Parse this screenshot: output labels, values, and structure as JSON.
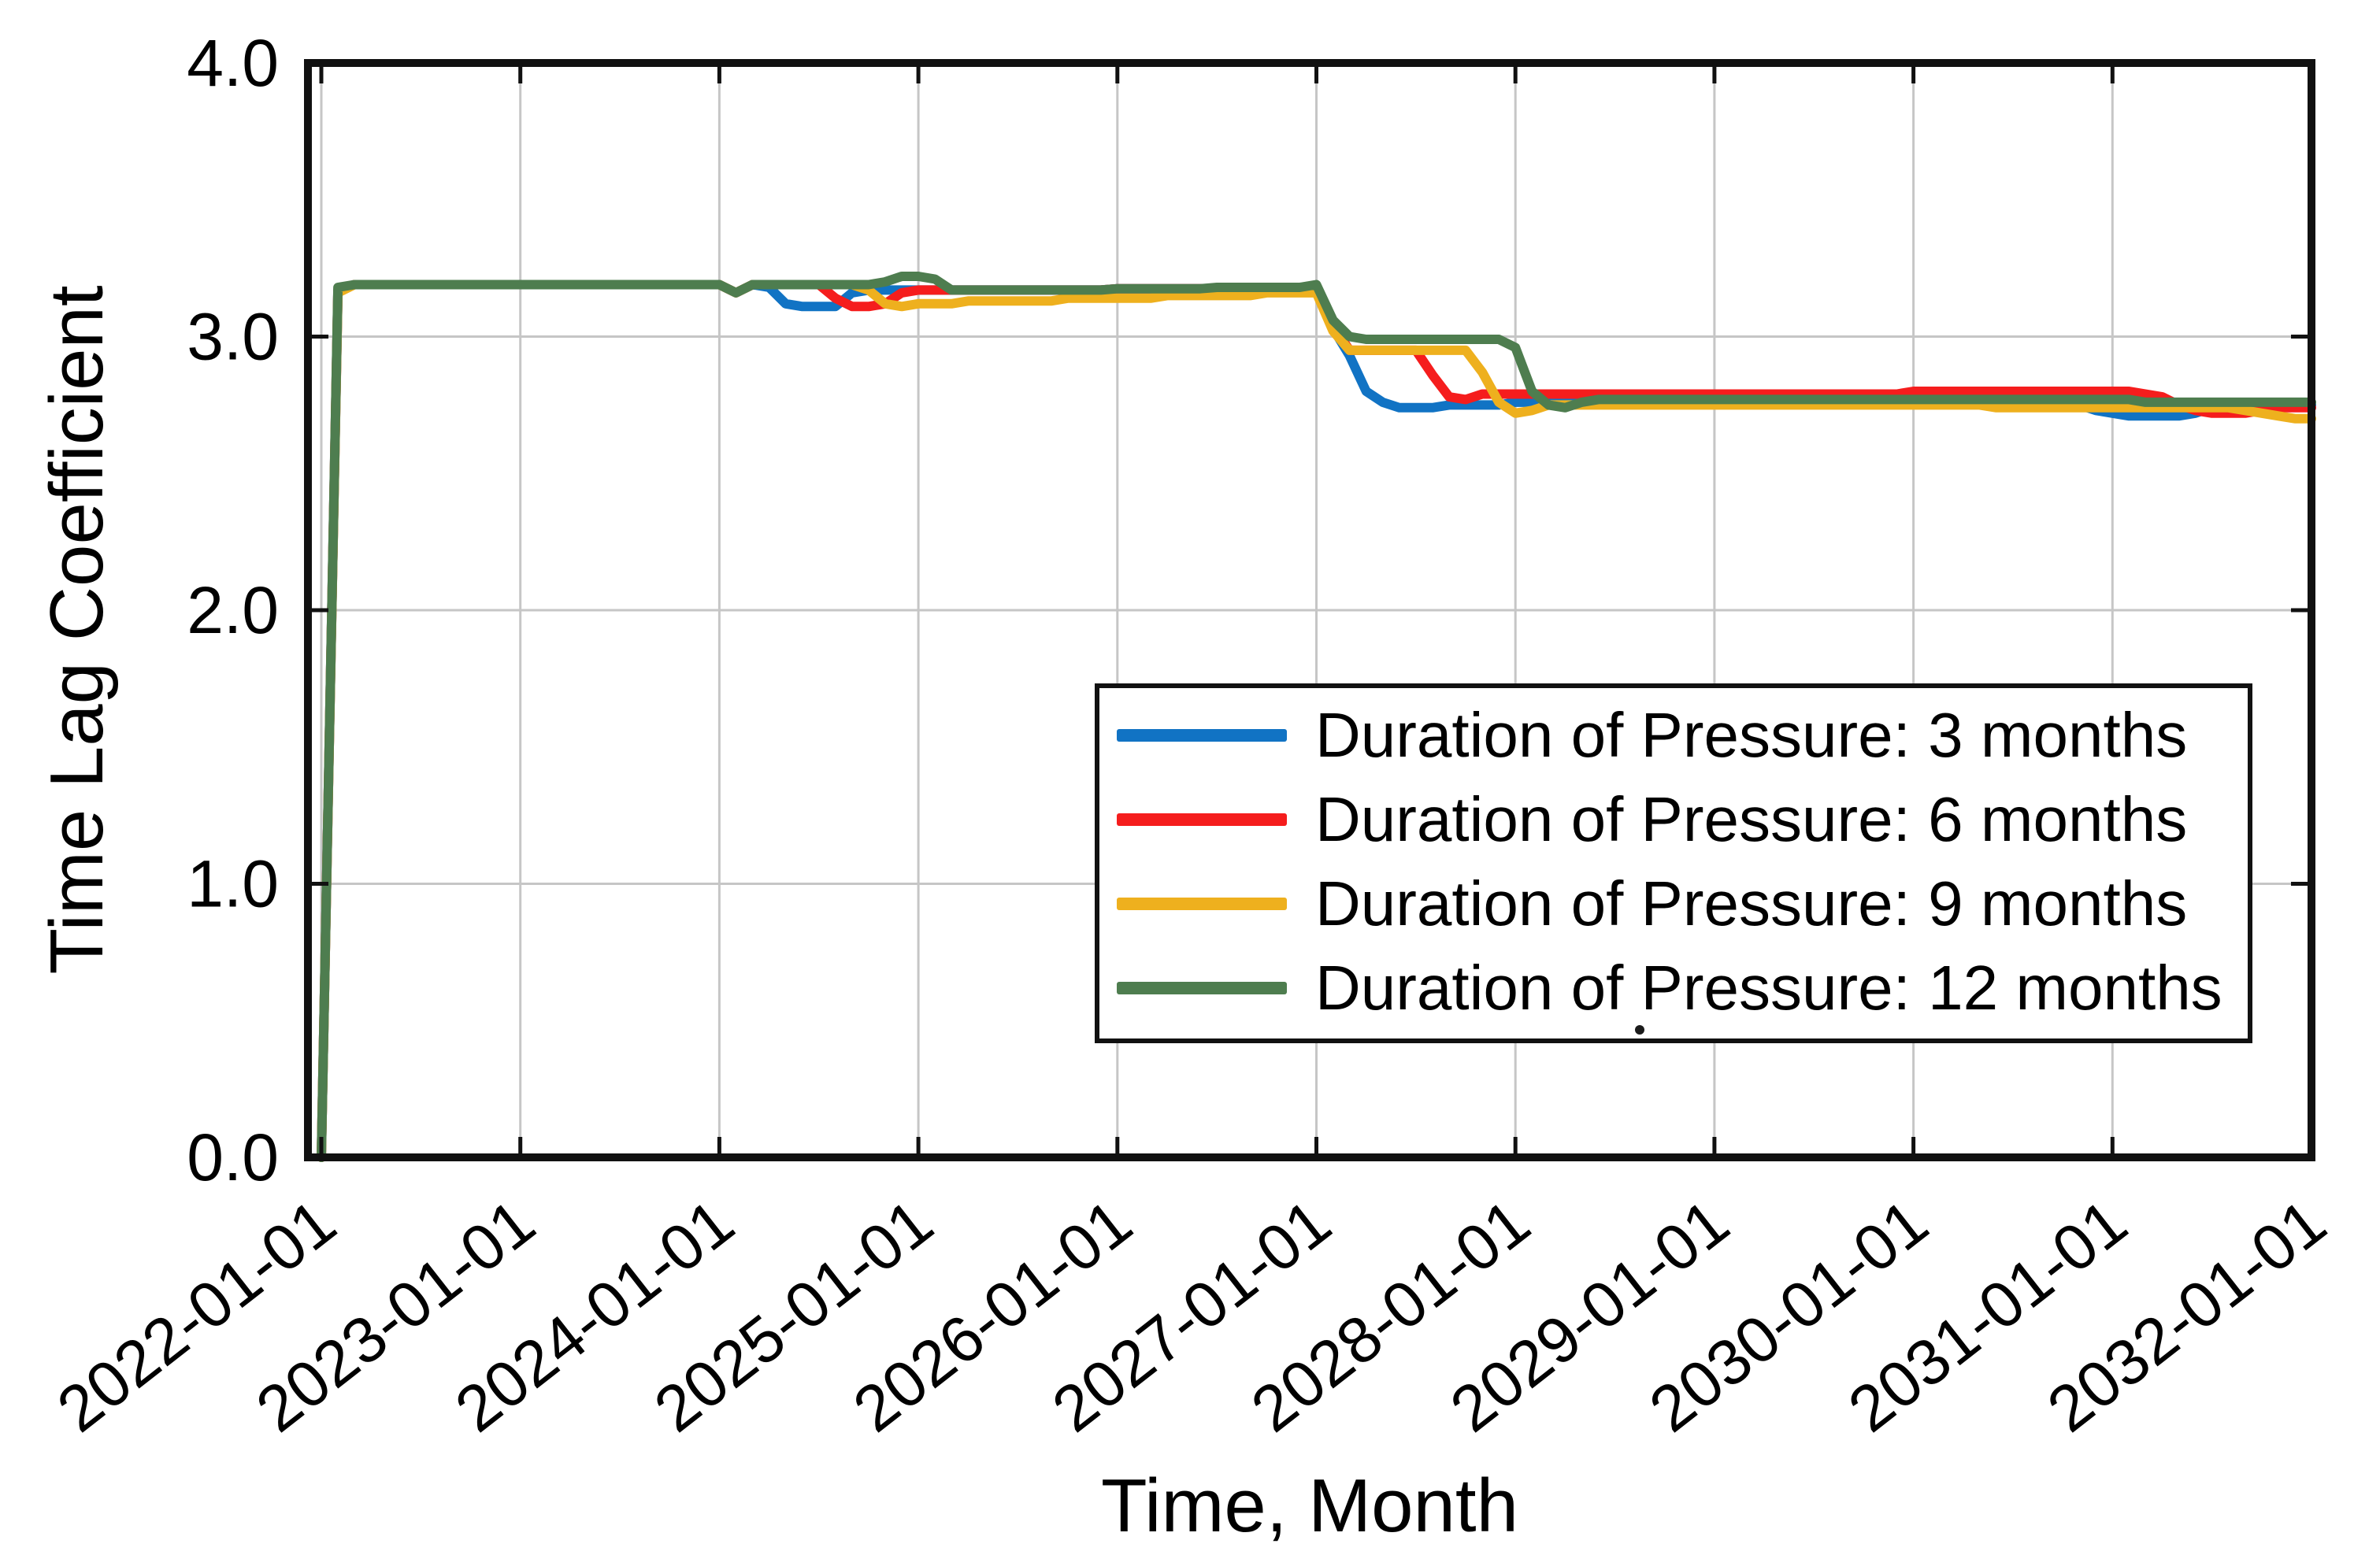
{
  "figure": {
    "background_color": "#ffffff",
    "frame_color": "#111111",
    "gridline_color": "#c6c6c6"
  },
  "chart_data": {
    "type": "line",
    "title": "",
    "xlabel": "Time, Month",
    "ylabel": "Time Lag Coefficient",
    "grid": true,
    "legend_position": "inside lower right",
    "ylim": [
      0.0,
      4.0
    ],
    "y_ticks": [
      "0.0",
      "1.0",
      "2.0",
      "3.0",
      "4.0"
    ],
    "x_range_months": [
      0,
      120
    ],
    "x_tick_interval_months": 12,
    "x_tick_labels": [
      "2022-01-01",
      "2023-01-01",
      "2024-01-01",
      "2025-01-01",
      "2026-01-01",
      "2027-01-01",
      "2028-01-01",
      "2029-01-01",
      "2030-01-01",
      "2031-01-01",
      "2032-01-01"
    ],
    "series": [
      {
        "name": "Duration of Pressure: 3 months",
        "color": "#1173c4",
        "values": [
          0.0,
          3.17,
          3.19,
          3.19,
          3.19,
          3.19,
          3.19,
          3.19,
          3.19,
          3.19,
          3.19,
          3.19,
          3.19,
          3.19,
          3.19,
          3.19,
          3.19,
          3.19,
          3.19,
          3.19,
          3.19,
          3.19,
          3.19,
          3.19,
          3.19,
          3.16,
          3.19,
          3.18,
          3.12,
          3.11,
          3.11,
          3.11,
          3.16,
          3.17,
          3.17,
          3.17,
          3.17,
          3.17,
          3.17,
          3.17,
          3.17,
          3.17,
          3.17,
          3.17,
          3.17,
          3.17,
          3.17,
          3.17,
          3.175,
          3.175,
          3.175,
          3.175,
          3.175,
          3.175,
          3.175,
          3.175,
          3.175,
          3.175,
          3.175,
          3.175,
          3.17,
          3.03,
          2.93,
          2.8,
          2.76,
          2.74,
          2.74,
          2.74,
          2.75,
          2.75,
          2.75,
          2.75,
          2.76,
          2.76,
          2.76,
          2.76,
          2.76,
          2.76,
          2.76,
          2.76,
          2.76,
          2.76,
          2.76,
          2.76,
          2.76,
          2.76,
          2.76,
          2.76,
          2.76,
          2.76,
          2.76,
          2.76,
          2.76,
          2.76,
          2.76,
          2.76,
          2.76,
          2.76,
          2.76,
          2.76,
          2.76,
          2.76,
          2.76,
          2.76,
          2.76,
          2.76,
          2.75,
          2.73,
          2.72,
          2.71,
          2.71,
          2.71,
          2.71,
          2.72,
          2.74,
          2.75,
          2.75,
          2.75,
          2.75,
          2.75,
          2.75
        ]
      },
      {
        "name": "Duration of Pressure: 6 months",
        "color": "#f51d1d",
        "values": [
          0.0,
          3.17,
          3.19,
          3.19,
          3.19,
          3.19,
          3.19,
          3.19,
          3.19,
          3.19,
          3.19,
          3.19,
          3.19,
          3.19,
          3.19,
          3.19,
          3.19,
          3.19,
          3.19,
          3.19,
          3.19,
          3.19,
          3.19,
          3.19,
          3.19,
          3.16,
          3.19,
          3.19,
          3.19,
          3.19,
          3.19,
          3.14,
          3.11,
          3.11,
          3.12,
          3.16,
          3.17,
          3.17,
          3.17,
          3.17,
          3.17,
          3.17,
          3.17,
          3.17,
          3.17,
          3.17,
          3.17,
          3.17,
          3.175,
          3.175,
          3.175,
          3.175,
          3.175,
          3.175,
          3.175,
          3.175,
          3.175,
          3.175,
          3.175,
          3.175,
          3.17,
          3.04,
          2.95,
          2.95,
          2.95,
          2.95,
          2.95,
          2.86,
          2.78,
          2.77,
          2.79,
          2.79,
          2.79,
          2.79,
          2.79,
          2.79,
          2.79,
          2.79,
          2.79,
          2.79,
          2.79,
          2.79,
          2.79,
          2.79,
          2.79,
          2.79,
          2.79,
          2.79,
          2.79,
          2.79,
          2.79,
          2.79,
          2.79,
          2.79,
          2.79,
          2.79,
          2.8,
          2.8,
          2.8,
          2.8,
          2.8,
          2.8,
          2.8,
          2.8,
          2.8,
          2.8,
          2.8,
          2.8,
          2.8,
          2.8,
          2.79,
          2.78,
          2.75,
          2.73,
          2.72,
          2.72,
          2.72,
          2.73,
          2.74,
          2.74,
          2.74
        ]
      },
      {
        "name": "Duration of Pressure: 9 months",
        "color": "#eeb01e",
        "values": [
          0.0,
          3.16,
          3.19,
          3.19,
          3.19,
          3.19,
          3.19,
          3.19,
          3.19,
          3.19,
          3.19,
          3.19,
          3.19,
          3.19,
          3.19,
          3.19,
          3.19,
          3.19,
          3.19,
          3.19,
          3.19,
          3.19,
          3.19,
          3.19,
          3.19,
          3.16,
          3.19,
          3.19,
          3.19,
          3.19,
          3.19,
          3.19,
          3.19,
          3.17,
          3.12,
          3.11,
          3.12,
          3.12,
          3.12,
          3.13,
          3.13,
          3.13,
          3.13,
          3.13,
          3.13,
          3.14,
          3.14,
          3.14,
          3.14,
          3.14,
          3.14,
          3.15,
          3.15,
          3.15,
          3.15,
          3.15,
          3.15,
          3.16,
          3.16,
          3.16,
          3.16,
          3.02,
          2.95,
          2.95,
          2.95,
          2.95,
          2.95,
          2.95,
          2.95,
          2.95,
          2.87,
          2.76,
          2.72,
          2.73,
          2.75,
          2.75,
          2.75,
          2.75,
          2.75,
          2.75,
          2.75,
          2.75,
          2.75,
          2.75,
          2.75,
          2.75,
          2.75,
          2.75,
          2.75,
          2.75,
          2.75,
          2.75,
          2.75,
          2.75,
          2.75,
          2.75,
          2.75,
          2.75,
          2.75,
          2.75,
          2.75,
          2.74,
          2.74,
          2.74,
          2.74,
          2.74,
          2.74,
          2.74,
          2.74,
          2.74,
          2.74,
          2.74,
          2.74,
          2.74,
          2.74,
          2.74,
          2.73,
          2.72,
          2.71,
          2.7,
          2.7
        ]
      },
      {
        "name": "Duration of Pressure: 12 months",
        "color": "#4e7d4f",
        "values": [
          0.0,
          3.18,
          3.19,
          3.19,
          3.19,
          3.19,
          3.19,
          3.19,
          3.19,
          3.19,
          3.19,
          3.19,
          3.19,
          3.19,
          3.19,
          3.19,
          3.19,
          3.19,
          3.19,
          3.19,
          3.19,
          3.19,
          3.19,
          3.19,
          3.19,
          3.16,
          3.19,
          3.19,
          3.19,
          3.19,
          3.19,
          3.19,
          3.19,
          3.19,
          3.2,
          3.22,
          3.22,
          3.21,
          3.17,
          3.17,
          3.17,
          3.17,
          3.17,
          3.17,
          3.17,
          3.17,
          3.17,
          3.17,
          3.175,
          3.175,
          3.175,
          3.175,
          3.175,
          3.175,
          3.18,
          3.18,
          3.18,
          3.18,
          3.18,
          3.18,
          3.19,
          3.06,
          3.0,
          2.99,
          2.99,
          2.99,
          2.99,
          2.99,
          2.99,
          2.99,
          2.99,
          2.99,
          2.96,
          2.8,
          2.75,
          2.74,
          2.76,
          2.77,
          2.77,
          2.77,
          2.77,
          2.77,
          2.77,
          2.77,
          2.77,
          2.77,
          2.77,
          2.77,
          2.77,
          2.77,
          2.77,
          2.77,
          2.77,
          2.77,
          2.77,
          2.77,
          2.77,
          2.77,
          2.77,
          2.77,
          2.77,
          2.77,
          2.77,
          2.77,
          2.77,
          2.77,
          2.77,
          2.77,
          2.77,
          2.77,
          2.76,
          2.76,
          2.76,
          2.76,
          2.76,
          2.76,
          2.76,
          2.76,
          2.76,
          2.76,
          2.76
        ]
      }
    ]
  }
}
